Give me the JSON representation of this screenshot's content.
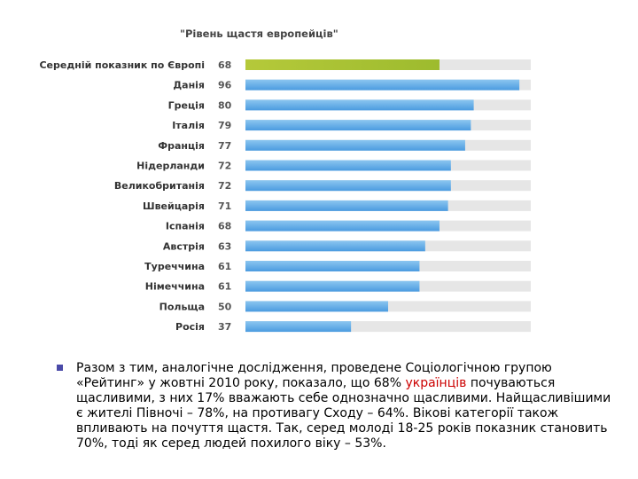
{
  "chart_data": {
    "type": "bar",
    "orientation": "horizontal",
    "title": "\"Рівень щастя европейців\"",
    "categories": [
      "Середній показник по Європі",
      "Данія",
      "Греція",
      "Італія",
      "Франція",
      "Нідерланди",
      "Великобританія",
      "Швейцарія",
      "Іспанія",
      "Австрія",
      "Туреччина",
      "Німеччина",
      "Польща",
      "Росія"
    ],
    "values": [
      68,
      96,
      80,
      79,
      77,
      72,
      72,
      71,
      68,
      63,
      61,
      61,
      50,
      37
    ],
    "value_labels": [
      "68",
      "96",
      "80",
      "79",
      "77",
      "72",
      "72",
      "71",
      "68",
      "63",
      "61",
      "61",
      "50",
      "37"
    ],
    "xlim": [
      0,
      100
    ],
    "grid": false,
    "colors": {
      "highlight": "#a9c23a",
      "bar": "#5ca8e4",
      "track": "#e6e6e6"
    }
  },
  "note": {
    "before": "Разом з тим, аналогічне дослідження, проведене Соціологічною групою «Рейтинг» у жовтні 2010 року, показало, що 68% ",
    "highlight": "українців",
    "after": " почуваються щасливими, з них 17% вважають себе однозначно щасливими. Найщасливішими є жителі Півночі – 78%, на противагу Сходу – 64%. Вікові категорії також впливають на почуття щастя. Так, серед молоді 18-25 років показник становить 70%, тоді як серед людей похилого віку – 53%."
  }
}
